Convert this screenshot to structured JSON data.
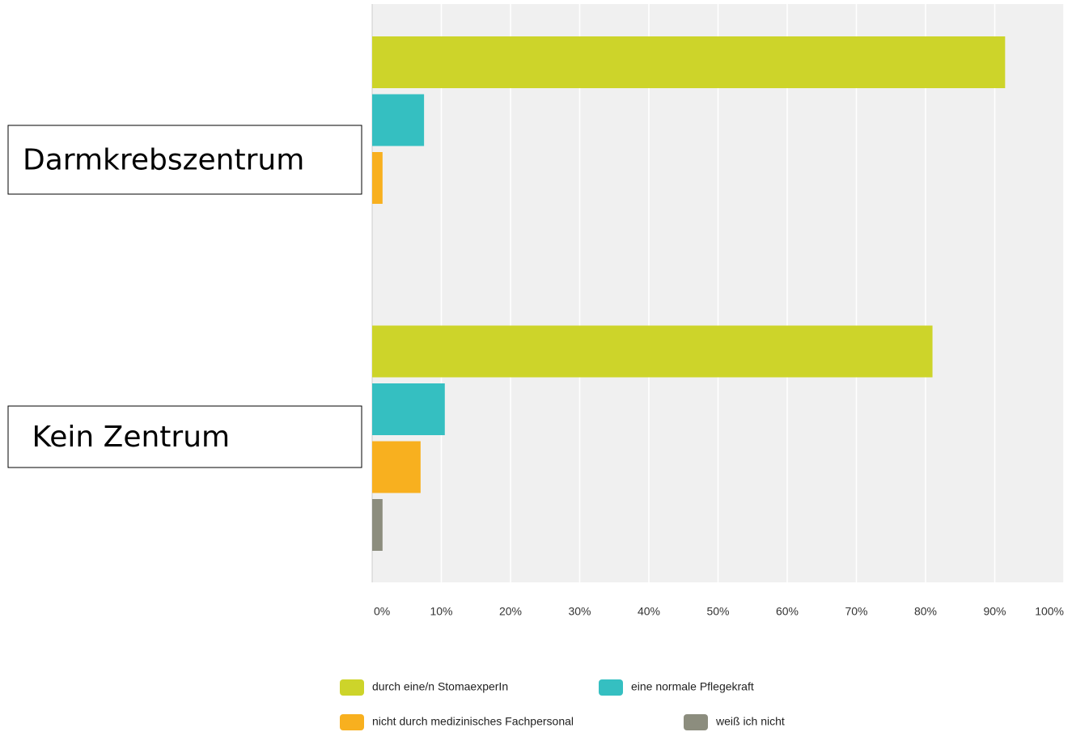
{
  "chart_data": {
    "type": "bar",
    "orientation": "horizontal",
    "categories": [
      "Darmkrebszentrum",
      " Kein Zentrum"
    ],
    "series": [
      {
        "name": "durch eine/n StomaexperIn",
        "color": "#cdd42a",
        "values": [
          91.5,
          81
        ]
      },
      {
        "name": "eine normale Pflegekraft",
        "color": "#35bfc1",
        "values": [
          7.5,
          10.5
        ]
      },
      {
        "name": "nicht durch medizinisches Fachpersonal",
        "color": "#f8b01f",
        "values": [
          1.5,
          7
        ]
      },
      {
        "name": "weiß ich nicht",
        "color": "#8c8d7e",
        "values": [
          0,
          1.5
        ]
      }
    ],
    "xlim": [
      0,
      100
    ],
    "xticks": [
      {
        "value": 0,
        "label": "0%"
      },
      {
        "value": 10,
        "label": "10%"
      },
      {
        "value": 20,
        "label": "20%"
      },
      {
        "value": 30,
        "label": "30%"
      },
      {
        "value": 40,
        "label": "40%"
      },
      {
        "value": 50,
        "label": "50%"
      },
      {
        "value": 60,
        "label": "60%"
      },
      {
        "value": 70,
        "label": "70%"
      },
      {
        "value": 80,
        "label": "80%"
      },
      {
        "value": 90,
        "label": "90%"
      },
      {
        "value": 100,
        "label": "100%"
      }
    ],
    "grid": true,
    "legend": "bottom"
  }
}
